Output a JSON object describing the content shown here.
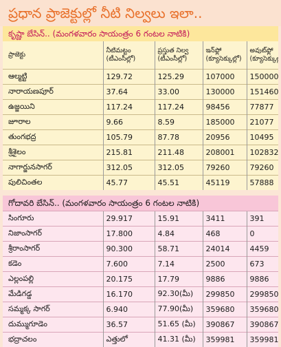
{
  "title": "ప్రధాన ప్రాజెక్టుల్లో నీటి నిల్వలు ఇలా..",
  "sections": [
    {
      "heading": "కృష్ణా బేసిన్.. (మంగళవారం సాయంత్రం 6 గంటల నాటికి)",
      "columns": [
        "ప్రాజెక్టు",
        "నీటిమట్టం (టీఎంసీల్లో)",
        "ప్రస్తుత నిల్వ (టీఎంసీల్లో)",
        "ఇన్‌ఫ్లో (క్యూసెక్కుల్లో)",
        "అవుట్‌ఫ్లో (క్యూసెక్కుల్లో)"
      ],
      "rows": [
        [
          "ఆల్మట్టి",
          "129.72",
          "125.29",
          "107000",
          "150000"
        ],
        [
          "నారాయణపూర్",
          "37.64",
          "33.00",
          "130000",
          "151460"
        ],
        [
          "ఉజ్జయిని",
          "117.24",
          "117.24",
          "98456",
          "77877"
        ],
        [
          "జూరాల",
          "9.66",
          "8.59",
          "185000",
          "21077"
        ],
        [
          "తుంగభద్ర",
          "105.79",
          "87.78",
          "20956",
          "10495"
        ],
        [
          "శ్రీశైలం",
          "215.81",
          "211.48",
          "208001",
          "102832"
        ],
        [
          "నాగార్జునసాగర్",
          "312.05",
          "312.05",
          "79260",
          "79260"
        ],
        [
          "పులిచింతల",
          "45.77",
          "45.51",
          "45119",
          "57888"
        ]
      ]
    },
    {
      "heading": "గోదావరి బేసిన్.. (మంగళవారం సాయంత్రం 6 గంటల నాటికి)",
      "rows": [
        [
          "సింగూరు",
          "29.917",
          "15.91",
          "3411",
          "391"
        ],
        [
          "నిజాంసాగర్",
          "17.800",
          "4.84",
          "468",
          "0"
        ],
        [
          "శ్రీరాంసాగర్",
          "90.300",
          "58.71",
          "24014",
          "4459"
        ],
        [
          "కడెం",
          "7.600",
          "7.14",
          "2500",
          "673"
        ],
        [
          "ఎల్లంపల్లి",
          "20.175",
          "17.79",
          "9886",
          "9886"
        ],
        [
          "మేడిగడ్డ",
          "16.170",
          "92.30(మీ)",
          "299850",
          "299850"
        ],
        [
          "సమ్మక్క సాగర్",
          "6.940",
          "77.90(మీ)",
          "359680",
          "359680"
        ],
        [
          "దుమ్ముగూడెం",
          "36.57",
          "51.65 (మీ)",
          "390867",
          "390867"
        ],
        [
          "భద్రాచలం",
          "ఎత్తులో",
          "41.31 (మీ)",
          "359981",
          "359981"
        ]
      ]
    }
  ]
}
